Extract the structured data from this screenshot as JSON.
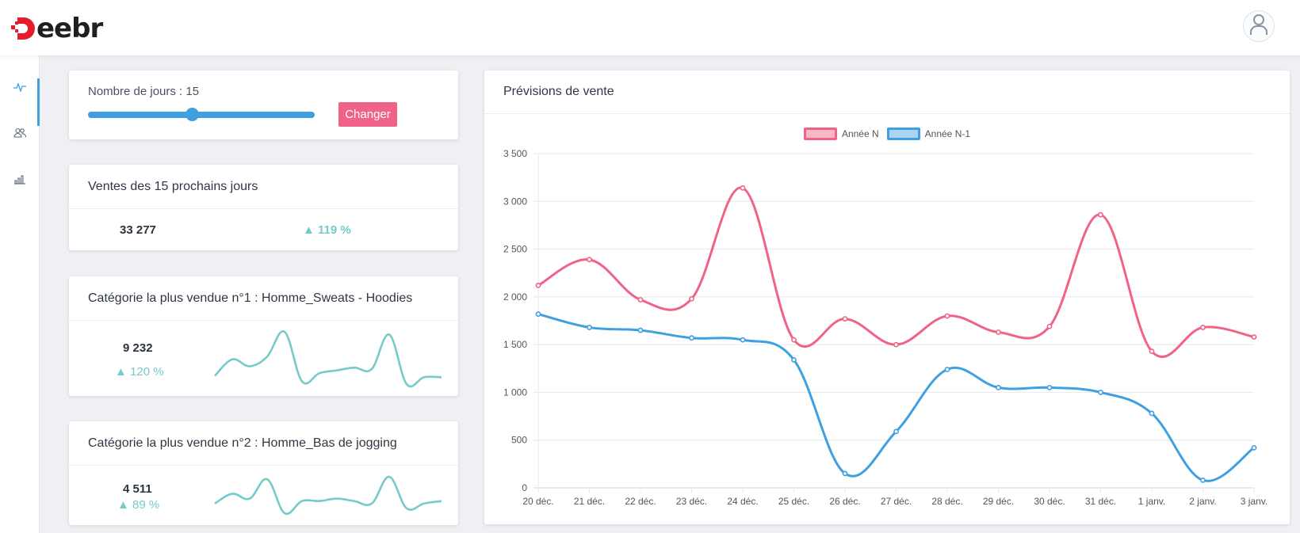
{
  "header": {
    "logo_text": "eebr",
    "logo_icon": "deebr-logo-icon",
    "avatar_icon": "user-icon"
  },
  "sidebar": {
    "items": [
      {
        "icon": "activity-icon",
        "active": true
      },
      {
        "icon": "users-icon",
        "active": false
      },
      {
        "icon": "bar-chart-icon",
        "active": false
      }
    ]
  },
  "controls": {
    "days_label": "Nombre de jours : 15",
    "slider_value": 15,
    "slider_fraction": 0.46,
    "change_button": "Changer"
  },
  "sales": {
    "title": "Ventes des 15 prochains jours",
    "value": "33 277",
    "change": "▲ 119 %"
  },
  "category1": {
    "title": "Catégorie la plus vendue n°1 : Homme_Sweats - Hoodies",
    "value": "9 232",
    "change": "▲ 120 %",
    "sparkline": [
      1700,
      2300,
      2050,
      2400,
      3300,
      1500,
      1800,
      1900,
      2000,
      1950,
      3200,
      1400,
      1650,
      1650
    ]
  },
  "category2": {
    "title": "Catégorie la plus vendue n°2 : Homme_Bas de jogging",
    "value": "4 511",
    "change": "▲ 89 %",
    "sparkline": [
      1400,
      1600,
      1500,
      1900,
      1200,
      1450,
      1450,
      1500,
      1450,
      1400,
      1950,
      1300,
      1400,
      1450
    ]
  },
  "forecast": {
    "title": "Prévisions de vente"
  },
  "colors": {
    "accent": "#3e9fe1",
    "pink": "#f06386",
    "blue": "#3e9fe1",
    "teal": "#74cbc9"
  },
  "chart_data": {
    "type": "line",
    "title": "Prévisions de vente",
    "categories": [
      "20 déc.",
      "21 déc.",
      "22 déc.",
      "23 déc.",
      "24 déc.",
      "25 déc.",
      "26 déc.",
      "27 déc.",
      "28 déc.",
      "29 déc.",
      "30 déc.",
      "31 déc.",
      "1 janv.",
      "2 janv.",
      "3 janv."
    ],
    "series": [
      {
        "name": "Année N",
        "color": "#f06386",
        "values": [
          2120,
          2390,
          1970,
          1980,
          3140,
          1550,
          1770,
          1500,
          1800,
          1630,
          1690,
          2860,
          1430,
          1680,
          1580
        ]
      },
      {
        "name": "Année N-1",
        "color": "#3e9fe1",
        "values": [
          1820,
          1680,
          1650,
          1570,
          1550,
          1340,
          150,
          590,
          1240,
          1050,
          1050,
          1000,
          780,
          80,
          420
        ]
      }
    ],
    "y_ticks": [
      "3 500",
      "3 000",
      "2 500",
      "2 000",
      "1 500",
      "1 000",
      "500",
      "0"
    ],
    "ylim": [
      0,
      3500
    ],
    "legend": "top-center",
    "grid": true
  }
}
